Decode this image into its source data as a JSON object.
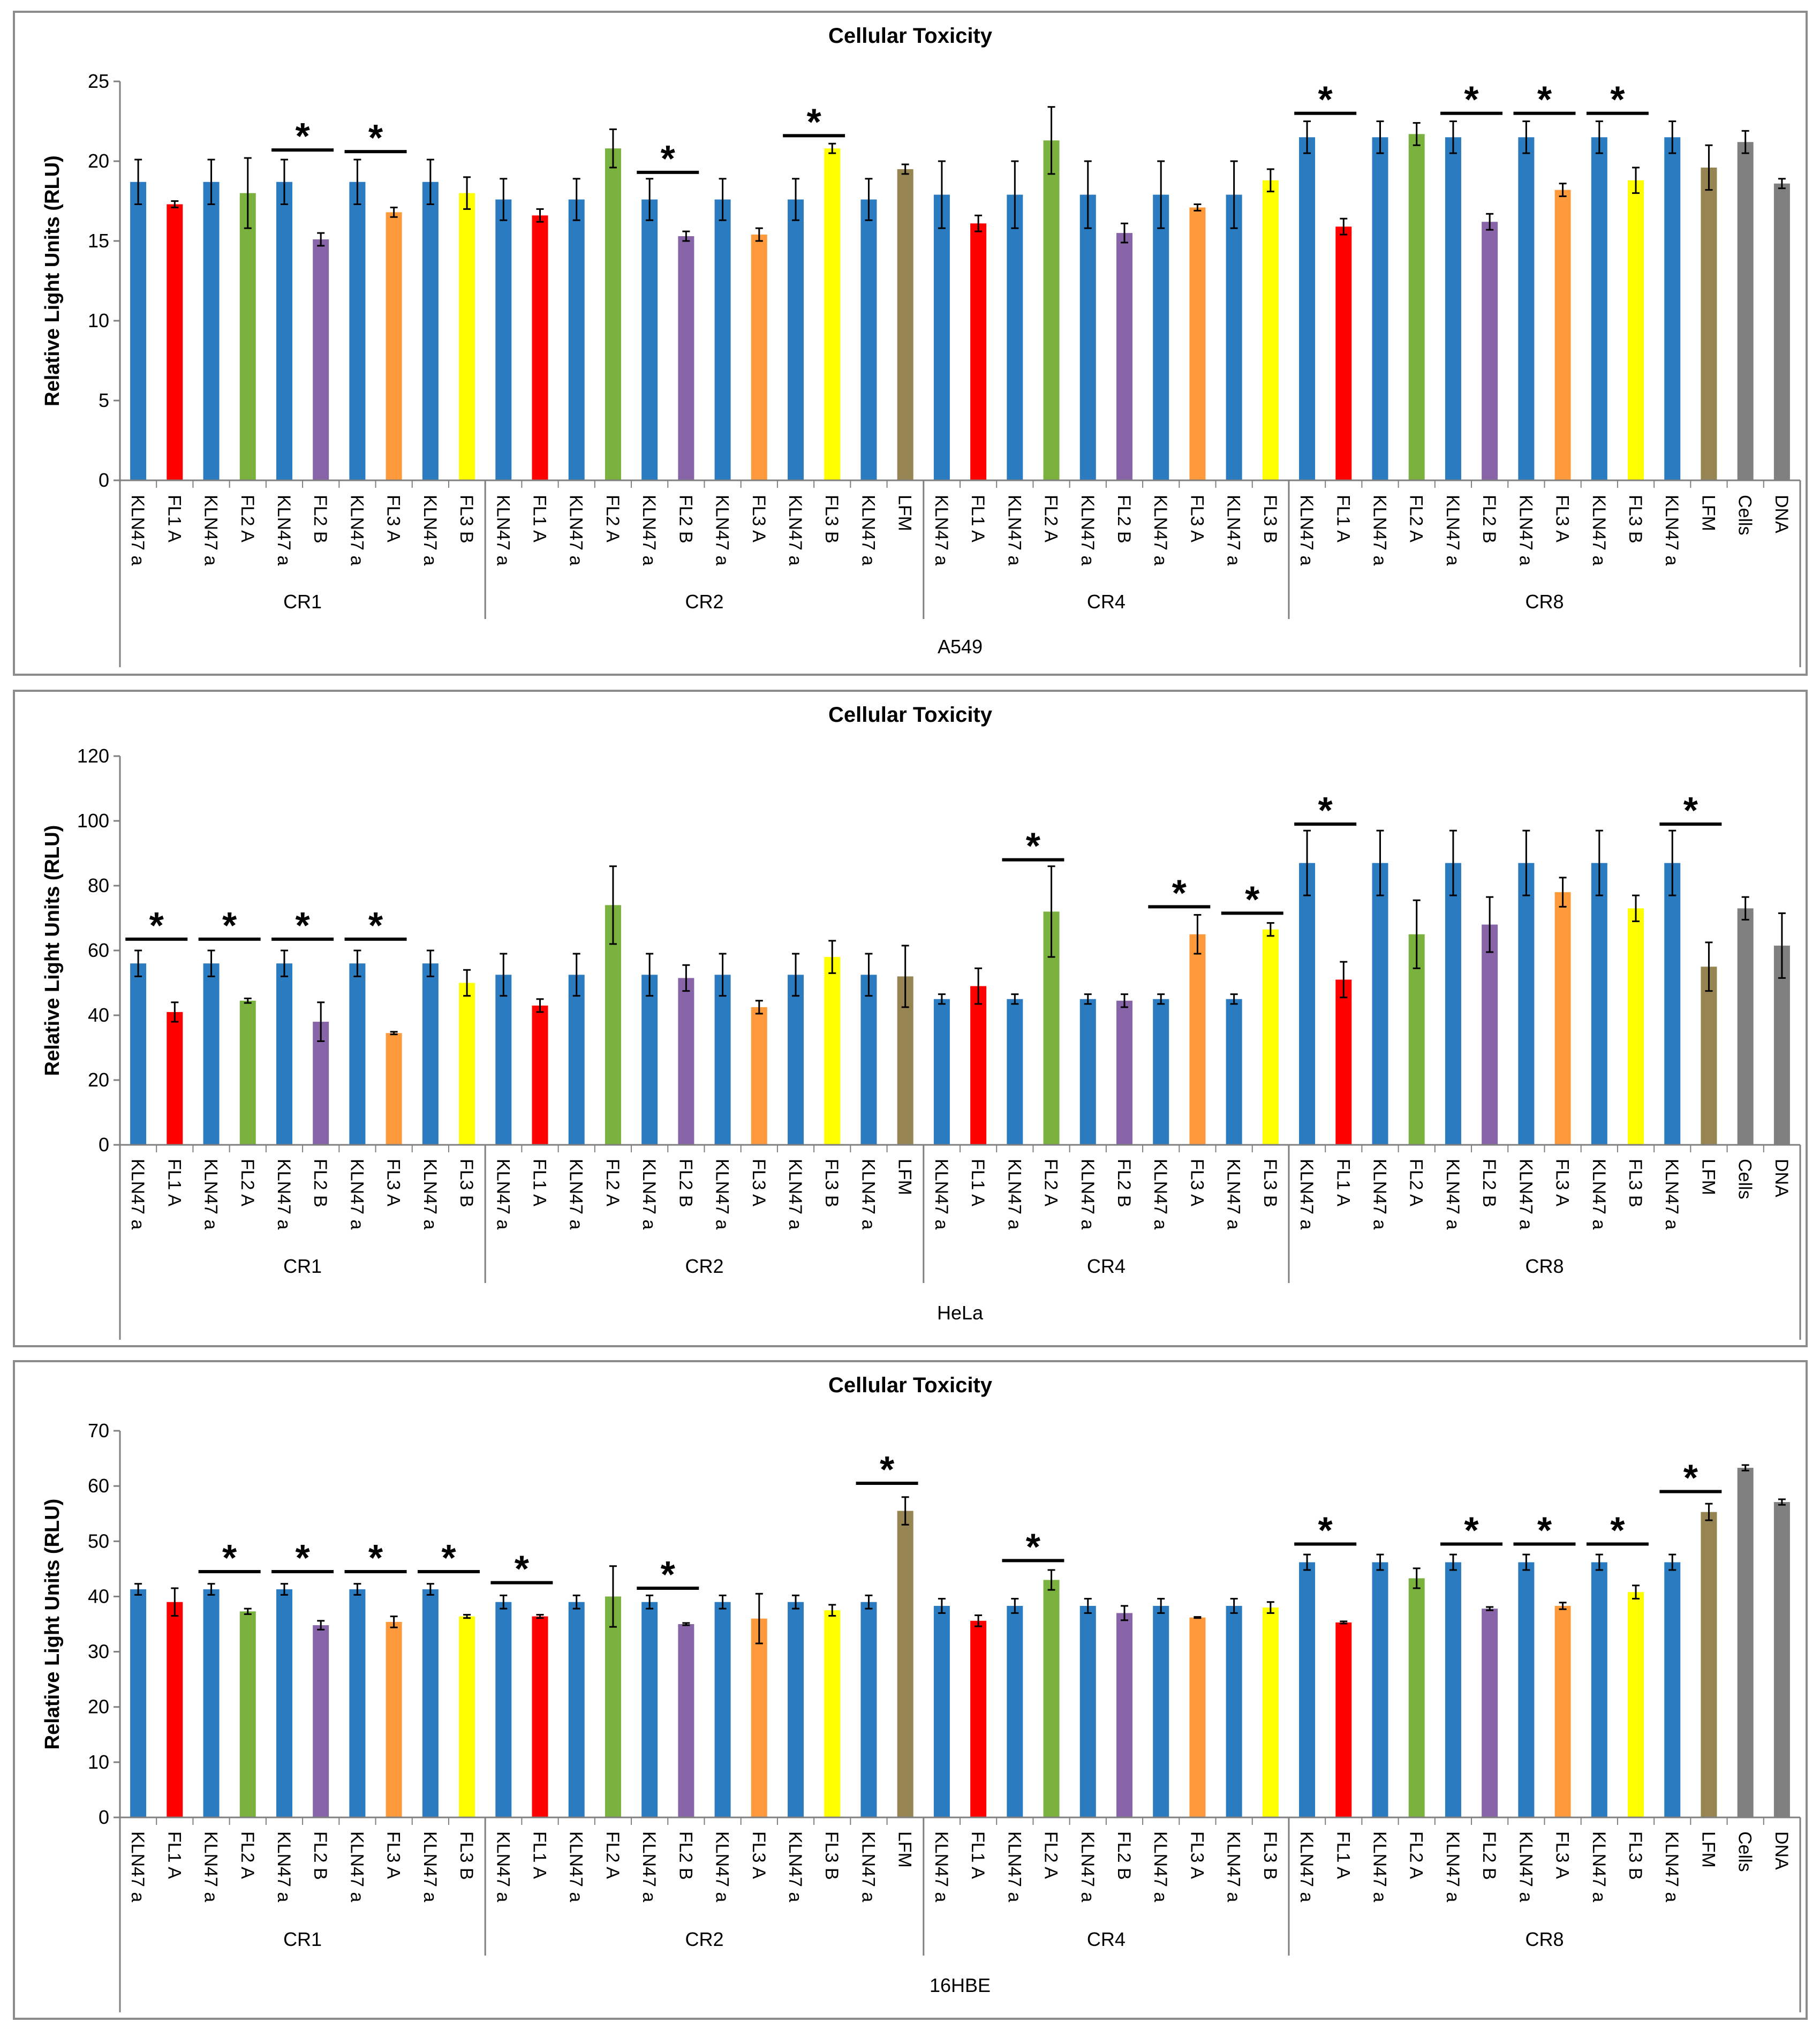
{
  "colors": {
    "KLN47 a": "#2a7bbf",
    "FL1 A": "#ff0000",
    "FL2 A": "#7bb23f",
    "FL2 B": "#8864a8",
    "FL3 A": "#ff9a3c",
    "FL3 B": "#ffff00",
    "LFM": "#968553",
    "Cells": "#808080",
    "DNA": "#808080"
  },
  "chart_data": [
    {
      "type": "bar",
      "title": "Cellular Toxicity",
      "ylabel": "Relative Light Units (RLU)",
      "cell_line": "A549",
      "ylim": [
        0,
        25
      ],
      "yticks": [
        "0",
        "5",
        "10",
        "15",
        "20",
        "25"
      ],
      "groups": [
        {
          "name": "CR1",
          "start": 0,
          "end": 9
        },
        {
          "name": "CR2",
          "start": 10,
          "end": 21
        },
        {
          "name": "CR4",
          "start": 22,
          "end": 31
        },
        {
          "name": "CR8",
          "start": 32,
          "end": 45
        }
      ],
      "categories": [
        "KLN47 a",
        "FL1 A",
        "KLN47 a",
        "FL2 A",
        "KLN47 a",
        "FL2 B",
        "KLN47 a",
        "FL3 A",
        "KLN47 a",
        "FL3 B",
        "KLN47 a",
        "FL1 A",
        "KLN47 a",
        "FL2 A",
        "KLN47 a",
        "FL2 B",
        "KLN47 a",
        "FL3 A",
        "KLN47 a",
        "FL3 B",
        "KLN47 a",
        "LFM",
        "KLN47 a",
        "FL1 A",
        "KLN47 a",
        "FL2 A",
        "KLN47 a",
        "FL2 B",
        "KLN47 a",
        "FL3 A",
        "KLN47 a",
        "FL3 B",
        "KLN47 a",
        "FL1 A",
        "KLN47 a",
        "FL2 A",
        "KLN47 a",
        "FL2 B",
        "KLN47 a",
        "FL3 A",
        "KLN47 a",
        "FL3 B",
        "KLN47 a",
        "LFM",
        "Cells",
        "DNA"
      ],
      "values": [
        18.7,
        17.3,
        18.7,
        18.0,
        18.7,
        15.1,
        18.7,
        16.8,
        18.7,
        18.0,
        17.6,
        16.6,
        17.6,
        20.8,
        17.6,
        15.3,
        17.6,
        15.4,
        17.6,
        20.8,
        17.6,
        19.5,
        17.9,
        16.1,
        17.9,
        21.3,
        17.9,
        15.5,
        17.9,
        17.1,
        17.9,
        18.8,
        21.5,
        15.9,
        21.5,
        21.7,
        21.5,
        16.2,
        21.5,
        18.2,
        21.5,
        18.8,
        21.5,
        19.6,
        21.2,
        18.6
      ],
      "errors": [
        1.4,
        0.2,
        1.4,
        2.2,
        1.4,
        0.4,
        1.4,
        0.3,
        1.4,
        1.0,
        1.3,
        0.4,
        1.3,
        1.2,
        1.3,
        0.3,
        1.3,
        0.4,
        1.3,
        0.3,
        1.3,
        0.3,
        2.1,
        0.5,
        2.1,
        2.1,
        2.1,
        0.6,
        2.1,
        0.2,
        2.1,
        0.7,
        1.0,
        0.5,
        1.0,
        0.7,
        1.0,
        0.5,
        1.0,
        0.4,
        1.0,
        0.8,
        1.0,
        1.4,
        0.7,
        0.3
      ],
      "significance": [
        {
          "from": 4,
          "to": 5,
          "label": "*",
          "y": 20.7
        },
        {
          "from": 6,
          "to": 7,
          "label": "*",
          "y": 20.6
        },
        {
          "from": 14,
          "to": 15,
          "label": "*",
          "y": 19.3
        },
        {
          "from": 18,
          "to": 19,
          "label": "*",
          "y": 21.6
        },
        {
          "from": 32,
          "to": 33,
          "label": "*",
          "y": 23.0
        },
        {
          "from": 36,
          "to": 37,
          "label": "*",
          "y": 23.0
        },
        {
          "from": 38,
          "to": 39,
          "label": "*",
          "y": 23.0
        },
        {
          "from": 40,
          "to": 41,
          "label": "*",
          "y": 23.0
        }
      ]
    },
    {
      "type": "bar",
      "title": "Cellular Toxicity",
      "ylabel": "Relative Light Units (RLU)",
      "cell_line": "HeLa",
      "ylim": [
        0,
        120
      ],
      "yticks": [
        "0",
        "20",
        "40",
        "60",
        "80",
        "100",
        "120"
      ],
      "groups": [
        {
          "name": "CR1",
          "start": 0,
          "end": 9
        },
        {
          "name": "CR2",
          "start": 10,
          "end": 21
        },
        {
          "name": "CR4",
          "start": 22,
          "end": 31
        },
        {
          "name": "CR8",
          "start": 32,
          "end": 45
        }
      ],
      "categories": [
        "KLN47 a",
        "FL1 A",
        "KLN47 a",
        "FL2 A",
        "KLN47 a",
        "FL2 B",
        "KLN47 a",
        "FL3 A",
        "KLN47 a",
        "FL3 B",
        "KLN47 a",
        "FL1 A",
        "KLN47 a",
        "FL2 A",
        "KLN47 a",
        "FL2 B",
        "KLN47 a",
        "FL3 A",
        "KLN47 a",
        "FL3 B",
        "KLN47 a",
        "LFM",
        "KLN47 a",
        "FL1 A",
        "KLN47 a",
        "FL2 A",
        "KLN47 a",
        "FL2 B",
        "KLN47 a",
        "FL3 A",
        "KLN47 a",
        "FL3 B",
        "KLN47 a",
        "FL1 A",
        "KLN47 a",
        "FL2 A",
        "KLN47 a",
        "FL2 B",
        "KLN47 a",
        "FL3 A",
        "KLN47 a",
        "FL3 B",
        "KLN47 a",
        "LFM",
        "Cells",
        "DNA"
      ],
      "values": [
        56,
        41,
        56,
        44.5,
        56,
        38,
        56,
        34.5,
        56,
        50,
        52.5,
        43,
        52.5,
        74,
        52.5,
        51.5,
        52.5,
        42.5,
        52.5,
        58,
        52.5,
        52,
        45,
        49,
        45,
        72,
        45,
        44.5,
        45,
        65,
        45,
        66.5,
        87,
        51,
        87,
        65,
        87,
        68,
        87,
        78,
        87,
        73,
        87,
        55,
        73,
        61.5
      ],
      "errors": [
        4,
        3,
        4,
        0.7,
        4,
        6,
        4,
        0.4,
        4,
        4,
        6.5,
        2,
        6.5,
        12,
        6.5,
        4,
        6.5,
        2,
        6.5,
        5,
        6.5,
        9.5,
        1.5,
        5.5,
        1.5,
        14,
        1.5,
        2,
        1.5,
        6,
        1.5,
        2,
        10,
        5.5,
        10,
        10.5,
        10,
        8.5,
        10,
        4.5,
        10,
        4,
        10,
        7.5,
        3.5,
        10
      ],
      "significance": [
        {
          "from": 0,
          "to": 1,
          "label": "*",
          "y": 63.5
        },
        {
          "from": 2,
          "to": 3,
          "label": "*",
          "y": 63.5
        },
        {
          "from": 4,
          "to": 5,
          "label": "*",
          "y": 63.5
        },
        {
          "from": 6,
          "to": 7,
          "label": "*",
          "y": 63.5
        },
        {
          "from": 24,
          "to": 25,
          "label": "*",
          "y": 88
        },
        {
          "from": 28,
          "to": 29,
          "label": "*",
          "y": 73.5
        },
        {
          "from": 30,
          "to": 31,
          "label": "*",
          "y": 71.5
        },
        {
          "from": 32,
          "to": 33,
          "label": "*",
          "y": 99
        },
        {
          "from": 42,
          "to": 43,
          "label": "*",
          "y": 99
        }
      ]
    },
    {
      "type": "bar",
      "title": "Cellular Toxicity",
      "ylabel": "Relative Light Units (RLU)",
      "cell_line": "16HBE",
      "ylim": [
        0,
        70
      ],
      "yticks": [
        "0",
        "10",
        "20",
        "30",
        "40",
        "50",
        "60",
        "70"
      ],
      "groups": [
        {
          "name": "CR1",
          "start": 0,
          "end": 9
        },
        {
          "name": "CR2",
          "start": 10,
          "end": 21
        },
        {
          "name": "CR4",
          "start": 22,
          "end": 31
        },
        {
          "name": "CR8",
          "start": 32,
          "end": 45
        }
      ],
      "categories": [
        "KLN47 a",
        "FL1 A",
        "KLN47 a",
        "FL2 A",
        "KLN47 a",
        "FL2 B",
        "KLN47 a",
        "FL3 A",
        "KLN47 a",
        "FL3 B",
        "KLN47 a",
        "FL1 A",
        "KLN47 a",
        "FL2 A",
        "KLN47 a",
        "FL2 B",
        "KLN47 a",
        "FL3 A",
        "KLN47 a",
        "FL3 B",
        "KLN47 a",
        "LFM",
        "KLN47 a",
        "FL1 A",
        "KLN47 a",
        "FL2 A",
        "KLN47 a",
        "FL2 B",
        "KLN47 a",
        "FL3 A",
        "KLN47 a",
        "FL3 B",
        "KLN47 a",
        "FL1 A",
        "KLN47 a",
        "FL2 A",
        "KLN47 a",
        "FL2 B",
        "KLN47 a",
        "FL3 A",
        "KLN47 a",
        "FL3 B",
        "KLN47 a",
        "LFM",
        "Cells",
        "DNA"
      ],
      "values": [
        41.3,
        39,
        41.3,
        37.3,
        41.3,
        34.8,
        41.3,
        35.4,
        41.3,
        36.4,
        39,
        36.4,
        39,
        40,
        39,
        35,
        39,
        36,
        39,
        37.5,
        39,
        55.5,
        38.3,
        35.6,
        38.3,
        43,
        38.3,
        37,
        38.3,
        36.2,
        38.3,
        38,
        46.2,
        35.3,
        46.2,
        43.3,
        46.2,
        37.8,
        46.2,
        38.3,
        46.2,
        40.8,
        46.2,
        55.3,
        63.3,
        57.1
      ],
      "errors": [
        1,
        2.5,
        1,
        0.5,
        1,
        0.8,
        1,
        1,
        1,
        0.3,
        1.2,
        0.3,
        1.2,
        5.5,
        1.2,
        0.2,
        1.2,
        4.5,
        1.2,
        1,
        1.2,
        2.5,
        1.3,
        1,
        1.3,
        1.8,
        1.3,
        1.3,
        1.3,
        0.1,
        1.3,
        1,
        1.4,
        0.2,
        1.4,
        1.8,
        1.4,
        0.3,
        1.4,
        0.6,
        1.4,
        1.2,
        1.4,
        1.5,
        0.5,
        0.5
      ],
      "significance": [
        {
          "from": 2,
          "to": 3,
          "label": "*",
          "y": 44.5
        },
        {
          "from": 4,
          "to": 5,
          "label": "*",
          "y": 44.5
        },
        {
          "from": 6,
          "to": 7,
          "label": "*",
          "y": 44.5
        },
        {
          "from": 8,
          "to": 9,
          "label": "*",
          "y": 44.5
        },
        {
          "from": 10,
          "to": 11,
          "label": "*",
          "y": 42.5
        },
        {
          "from": 14,
          "to": 15,
          "label": "*",
          "y": 41.5
        },
        {
          "from": 20,
          "to": 21,
          "label": "*",
          "y": 60.5
        },
        {
          "from": 24,
          "to": 25,
          "label": "*",
          "y": 46.5
        },
        {
          "from": 32,
          "to": 33,
          "label": "*",
          "y": 49.5
        },
        {
          "from": 36,
          "to": 37,
          "label": "*",
          "y": 49.5
        },
        {
          "from": 38,
          "to": 39,
          "label": "*",
          "y": 49.5
        },
        {
          "from": 40,
          "to": 41,
          "label": "*",
          "y": 49.5
        },
        {
          "from": 42,
          "to": 43,
          "label": "*",
          "y": 59
        }
      ]
    }
  ]
}
